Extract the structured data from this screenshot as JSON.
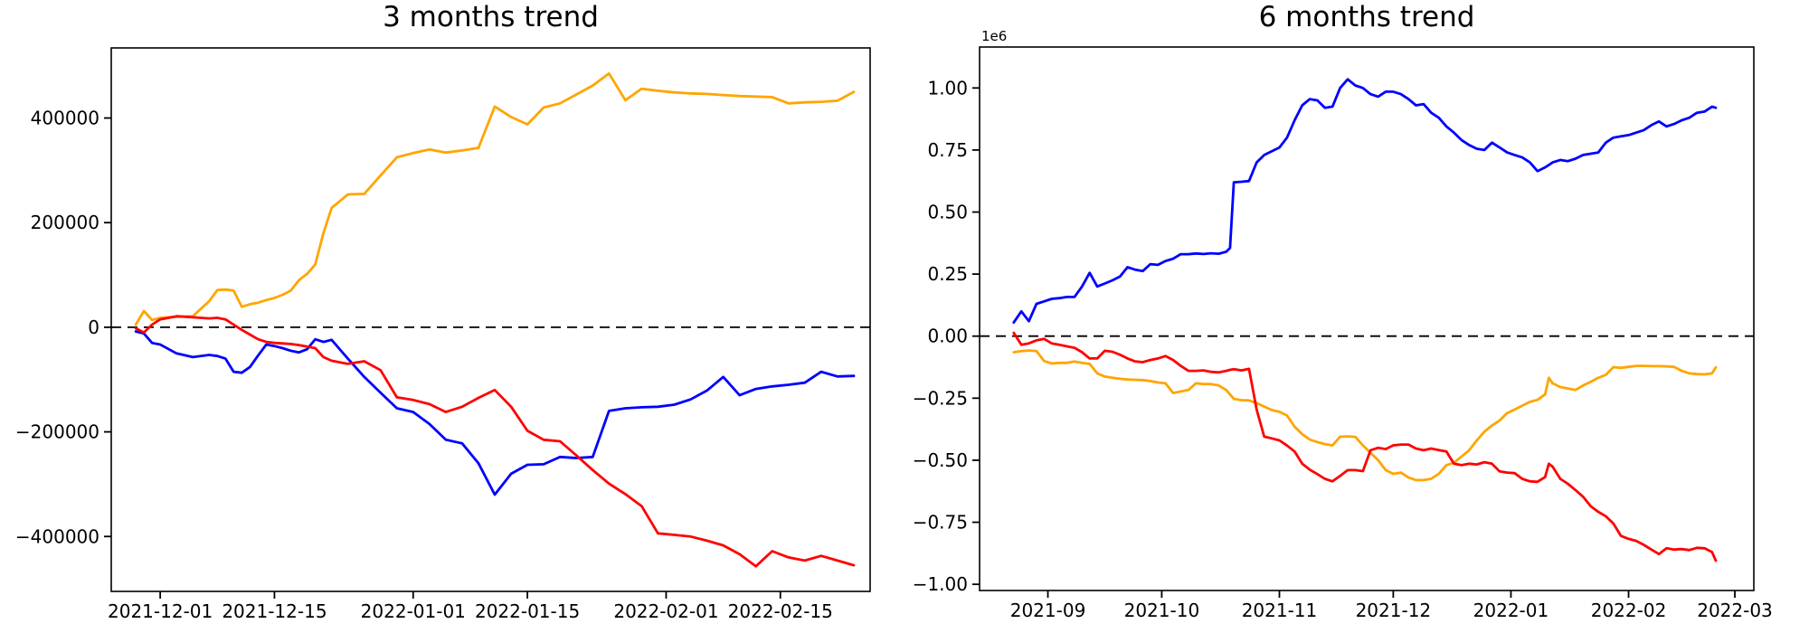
{
  "figure": {
    "background": "#ffffff",
    "axis_color": "#000000",
    "zero_line_style": "dashed"
  },
  "chart_data": [
    {
      "type": "line",
      "title": "3 months trend",
      "xlabel": "",
      "ylabel": "",
      "grid": false,
      "legend": "none",
      "xlim": [
        "2021-11-25",
        "2022-02-26"
      ],
      "ylim": [
        -505000,
        534000
      ],
      "zero_line": true,
      "x_ticks": [
        {
          "date": "2021-12-01",
          "label": "2021-12-01"
        },
        {
          "date": "2021-12-15",
          "label": "2021-12-15"
        },
        {
          "date": "2022-01-01",
          "label": "2022-01-01"
        },
        {
          "date": "2022-01-15",
          "label": "2022-01-15"
        },
        {
          "date": "2022-02-01",
          "label": "2022-02-01"
        },
        {
          "date": "2022-02-15",
          "label": "2022-02-15"
        }
      ],
      "y_ticks": [
        {
          "value": 400000,
          "label": "400000"
        },
        {
          "value": 200000,
          "label": "200000"
        },
        {
          "value": 0,
          "label": "0"
        },
        {
          "value": -200000,
          "label": "−200000"
        },
        {
          "value": -400000,
          "label": "−400000"
        }
      ],
      "dates": [
        "2021-11-28",
        "2021-11-29",
        "2021-11-30",
        "2021-12-01",
        "2021-12-03",
        "2021-12-05",
        "2021-12-07",
        "2021-12-08",
        "2021-12-09",
        "2021-12-10",
        "2021-12-11",
        "2021-12-12",
        "2021-12-13",
        "2021-12-14",
        "2021-12-15",
        "2021-12-16",
        "2021-12-17",
        "2021-12-18",
        "2021-12-19",
        "2021-12-20",
        "2021-12-21",
        "2021-12-22",
        "2021-12-24",
        "2021-12-26",
        "2021-12-28",
        "2021-12-30",
        "2022-01-01",
        "2022-01-03",
        "2022-01-05",
        "2022-01-07",
        "2022-01-09",
        "2022-01-11",
        "2022-01-13",
        "2022-01-15",
        "2022-01-17",
        "2022-01-19",
        "2022-01-21",
        "2022-01-23",
        "2022-01-25",
        "2022-01-27",
        "2022-01-29",
        "2022-01-31",
        "2022-02-02",
        "2022-02-04",
        "2022-02-06",
        "2022-02-08",
        "2022-02-10",
        "2022-02-12",
        "2022-02-14",
        "2022-02-16",
        "2022-02-18",
        "2022-02-20",
        "2022-02-22",
        "2022-02-24"
      ],
      "series": [
        {
          "name": "orange",
          "color": "#ffa500",
          "values": [
            5000,
            31000,
            14000,
            18000,
            20000,
            21000,
            50000,
            71000,
            72000,
            70000,
            39000,
            44000,
            47000,
            52000,
            56000,
            62000,
            70000,
            90000,
            102000,
            120000,
            180000,
            228000,
            254000,
            255000,
            290000,
            325000,
            333000,
            340000,
            334000,
            338000,
            343000,
            422000,
            402000,
            388000,
            420000,
            428000,
            445000,
            462000,
            485000,
            434000,
            456000,
            452000,
            449000,
            447000,
            446000,
            444000,
            442000,
            441000,
            440000,
            428000,
            430000,
            431000,
            433000,
            450000
          ]
        },
        {
          "name": "blue",
          "color": "#0000ff",
          "values": [
            -8000,
            -12000,
            -30000,
            -33000,
            -50000,
            -57000,
            -53000,
            -55000,
            -60000,
            -85000,
            -87000,
            -76000,
            -54000,
            -33000,
            -36000,
            -40000,
            -45000,
            -48000,
            -42000,
            -23000,
            -28000,
            -24000,
            -60000,
            -95000,
            -125000,
            -155000,
            -162000,
            -185000,
            -215000,
            -222000,
            -260000,
            -320000,
            -280000,
            -263000,
            -262000,
            -248000,
            -250000,
            -248000,
            -160000,
            -155000,
            -153000,
            -152000,
            -148000,
            -138000,
            -121000,
            -95000,
            -130000,
            -118000,
            -113000,
            -110000,
            -106000,
            -85000,
            -94000,
            -93000
          ]
        },
        {
          "name": "red",
          "color": "#ff0000",
          "values": [
            -2000,
            -10000,
            5000,
            15000,
            21000,
            19000,
            17000,
            18000,
            15000,
            5000,
            -5000,
            -14000,
            -23000,
            -28000,
            -30000,
            -31000,
            -32000,
            -34000,
            -37000,
            -40000,
            -57000,
            -64000,
            -70000,
            -65000,
            -82000,
            -134000,
            -139000,
            -147000,
            -162000,
            -152000,
            -135000,
            -120000,
            -152000,
            -198000,
            -215000,
            -218000,
            -245000,
            -273000,
            -299000,
            -319000,
            -342000,
            -394000,
            -397000,
            -400000,
            -408000,
            -417000,
            -434000,
            -457000,
            -428000,
            -440000,
            -446000,
            -437000,
            -446000,
            -455000
          ]
        }
      ]
    },
    {
      "type": "line",
      "title": "6 months trend",
      "xlabel": "",
      "ylabel": "",
      "grid": false,
      "legend": "none",
      "offset_label": "1e6",
      "xlim": [
        "2021-08-14",
        "2022-03-06"
      ],
      "ylim": [
        -1025000,
        1165000
      ],
      "zero_line": true,
      "x_ticks": [
        {
          "date": "2021-09-01",
          "label": "2021-09"
        },
        {
          "date": "2021-10-01",
          "label": "2021-10"
        },
        {
          "date": "2021-11-01",
          "label": "2021-11"
        },
        {
          "date": "2021-12-01",
          "label": "2021-12"
        },
        {
          "date": "2022-01-01",
          "label": "2022-01"
        },
        {
          "date": "2022-02-01",
          "label": "2022-02"
        },
        {
          "date": "2022-03-01",
          "label": "2022-03"
        }
      ],
      "y_ticks": [
        {
          "value": 1000000,
          "label": "1.00"
        },
        {
          "value": 750000,
          "label": "0.75"
        },
        {
          "value": 500000,
          "label": "0.50"
        },
        {
          "value": 250000,
          "label": "0.25"
        },
        {
          "value": 0,
          "label": "0.00"
        },
        {
          "value": -250000,
          "label": "−0.25"
        },
        {
          "value": -500000,
          "label": "−0.50"
        },
        {
          "value": -750000,
          "label": "−0.75"
        },
        {
          "value": -1000000,
          "label": "−1.00"
        }
      ],
      "dates": [
        "2021-08-23",
        "2021-08-25",
        "2021-08-27",
        "2021-08-29",
        "2021-08-31",
        "2021-09-02",
        "2021-09-04",
        "2021-09-06",
        "2021-09-08",
        "2021-09-10",
        "2021-09-12",
        "2021-09-14",
        "2021-09-16",
        "2021-09-18",
        "2021-09-20",
        "2021-09-22",
        "2021-09-24",
        "2021-09-26",
        "2021-09-28",
        "2021-09-30",
        "2021-10-02",
        "2021-10-04",
        "2021-10-06",
        "2021-10-08",
        "2021-10-10",
        "2021-10-12",
        "2021-10-14",
        "2021-10-16",
        "2021-10-18",
        "2021-10-19",
        "2021-10-20",
        "2021-10-22",
        "2021-10-24",
        "2021-10-26",
        "2021-10-28",
        "2021-10-30",
        "2021-11-01",
        "2021-11-03",
        "2021-11-05",
        "2021-11-07",
        "2021-11-09",
        "2021-11-11",
        "2021-11-13",
        "2021-11-15",
        "2021-11-17",
        "2021-11-19",
        "2021-11-21",
        "2021-11-23",
        "2021-11-25",
        "2021-11-27",
        "2021-11-29",
        "2021-12-01",
        "2021-12-03",
        "2021-12-05",
        "2021-12-07",
        "2021-12-09",
        "2021-12-11",
        "2021-12-13",
        "2021-12-15",
        "2021-12-17",
        "2021-12-19",
        "2021-12-21",
        "2021-12-23",
        "2021-12-25",
        "2021-12-27",
        "2021-12-29",
        "2021-12-31",
        "2022-01-02",
        "2022-01-04",
        "2022-01-06",
        "2022-01-08",
        "2022-01-10",
        "2022-01-11",
        "2022-01-12",
        "2022-01-14",
        "2022-01-16",
        "2022-01-18",
        "2022-01-20",
        "2022-01-22",
        "2022-01-24",
        "2022-01-26",
        "2022-01-28",
        "2022-01-30",
        "2022-02-01",
        "2022-02-03",
        "2022-02-05",
        "2022-02-07",
        "2022-02-09",
        "2022-02-11",
        "2022-02-13",
        "2022-02-15",
        "2022-02-17",
        "2022-02-19",
        "2022-02-21",
        "2022-02-23",
        "2022-02-24"
      ],
      "series": [
        {
          "name": "blue",
          "color": "#0000ff",
          "values": [
            55000,
            100000,
            60000,
            130000,
            140000,
            150000,
            153000,
            158000,
            158000,
            200000,
            255000,
            200000,
            212000,
            225000,
            240000,
            278000,
            268000,
            262000,
            290000,
            287000,
            303000,
            312000,
            330000,
            330000,
            333000,
            331000,
            334000,
            332000,
            340000,
            355000,
            620000,
            622000,
            625000,
            700000,
            730000,
            745000,
            760000,
            800000,
            870000,
            930000,
            955000,
            950000,
            920000,
            925000,
            1000000,
            1035000,
            1010000,
            1000000,
            975000,
            965000,
            985000,
            985000,
            975000,
            955000,
            930000,
            935000,
            900000,
            880000,
            845000,
            820000,
            790000,
            770000,
            755000,
            750000,
            780000,
            760000,
            740000,
            730000,
            720000,
            700000,
            665000,
            680000,
            690000,
            700000,
            710000,
            705000,
            715000,
            730000,
            735000,
            740000,
            780000,
            800000,
            805000,
            810000,
            820000,
            830000,
            850000,
            865000,
            845000,
            855000,
            870000,
            880000,
            900000,
            905000,
            925000,
            920000
          ]
        },
        {
          "name": "orange",
          "color": "#ffa500",
          "values": [
            -65000,
            -60000,
            -58000,
            -60000,
            -100000,
            -110000,
            -108000,
            -108000,
            -102000,
            -108000,
            -112000,
            -150000,
            -163000,
            -168000,
            -172000,
            -175000,
            -176000,
            -177000,
            -181000,
            -187000,
            -190000,
            -229000,
            -223000,
            -217000,
            -190000,
            -193000,
            -193000,
            -199000,
            -217000,
            -235000,
            -253000,
            -258000,
            -259000,
            -270000,
            -284000,
            -298000,
            -305000,
            -320000,
            -365000,
            -395000,
            -417000,
            -427000,
            -435000,
            -440000,
            -405000,
            -404000,
            -406000,
            -440000,
            -470000,
            -500000,
            -540000,
            -555000,
            -550000,
            -570000,
            -580000,
            -580000,
            -575000,
            -555000,
            -520000,
            -510000,
            -485000,
            -460000,
            -420000,
            -385000,
            -360000,
            -340000,
            -310000,
            -296000,
            -280000,
            -265000,
            -257000,
            -235000,
            -168000,
            -190000,
            -205000,
            -211000,
            -217000,
            -199000,
            -184000,
            -168000,
            -156000,
            -125000,
            -128000,
            -124000,
            -120000,
            -120000,
            -121000,
            -121000,
            -122000,
            -124000,
            -140000,
            -150000,
            -153000,
            -154000,
            -150000,
            -126000
          ]
        },
        {
          "name": "red",
          "color": "#ff0000",
          "values": [
            13000,
            -35000,
            -29000,
            -17000,
            -11000,
            -29000,
            -35000,
            -41000,
            -47000,
            -65000,
            -90000,
            -90000,
            -59000,
            -63000,
            -75000,
            -90000,
            -102000,
            -105000,
            -96000,
            -90000,
            -80000,
            -96000,
            -120000,
            -140000,
            -140000,
            -138000,
            -144000,
            -146000,
            -140000,
            -136000,
            -133000,
            -138000,
            -132000,
            -296000,
            -405000,
            -412000,
            -420000,
            -441000,
            -465000,
            -514000,
            -538000,
            -556000,
            -575000,
            -585000,
            -563000,
            -540000,
            -540000,
            -544000,
            -460000,
            -450000,
            -455000,
            -440000,
            -437000,
            -437000,
            -453000,
            -460000,
            -453000,
            -459000,
            -465000,
            -514000,
            -520000,
            -514000,
            -517000,
            -508000,
            -514000,
            -545000,
            -550000,
            -552000,
            -575000,
            -585000,
            -587000,
            -568000,
            -514000,
            -526000,
            -575000,
            -595000,
            -620000,
            -647000,
            -685000,
            -708000,
            -726000,
            -755000,
            -805000,
            -817000,
            -825000,
            -841000,
            -860000,
            -878000,
            -855000,
            -860000,
            -858000,
            -862000,
            -853000,
            -855000,
            -870000,
            -905000
          ]
        }
      ]
    }
  ]
}
